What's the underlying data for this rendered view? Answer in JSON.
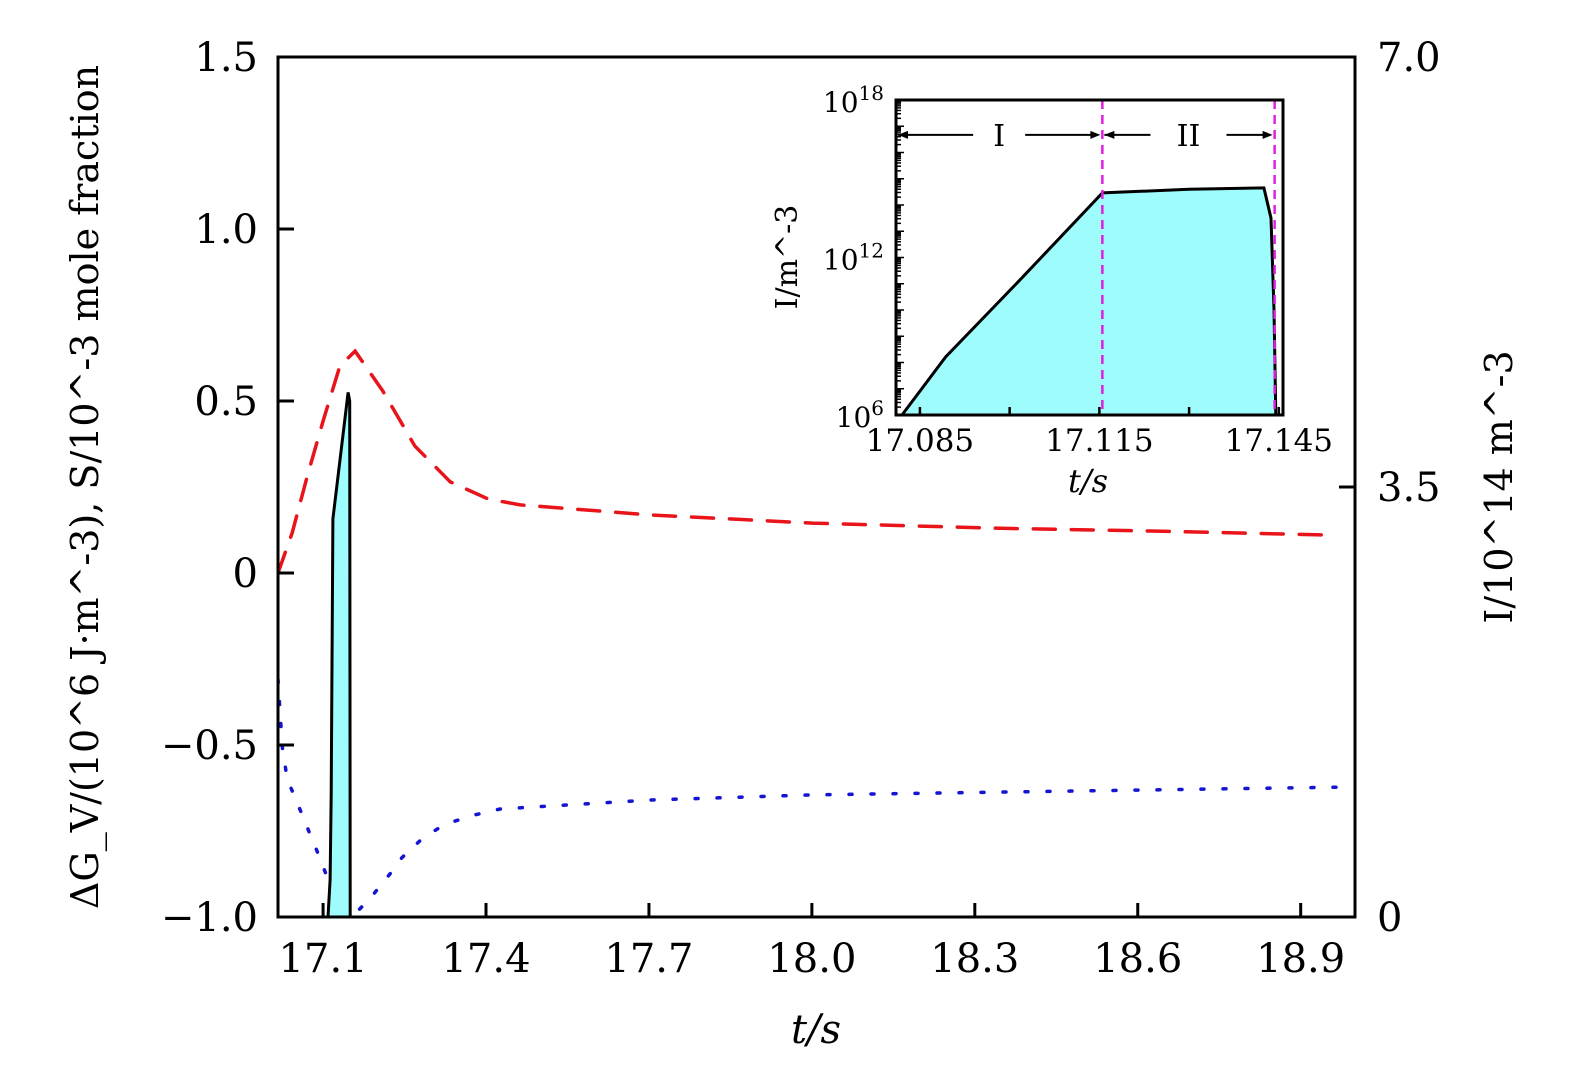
{
  "chart_data": [
    {
      "type": "line",
      "panel": "main",
      "xlabel": "t/s",
      "ylabel_left": "ΔG_V/(10^6 J·m^-3), S/10^-3 mole fraction",
      "ylabel_right": "I/10^14 m^-3",
      "xlim": [
        17.017,
        19.0
      ],
      "ylim_left": [
        -1.0,
        1.5
      ],
      "ylim_right": [
        0,
        7.0
      ],
      "x_ticks": [
        17.1,
        17.4,
        17.7,
        18.0,
        18.3,
        18.6,
        18.9
      ],
      "x_tick_labels": [
        "17.1",
        "17.4",
        "17.7",
        "18.0",
        "18.3",
        "18.6",
        "18.9"
      ],
      "y_left_ticks": [
        1.5,
        1.0,
        0.5,
        0,
        -0.5,
        -1.0
      ],
      "y_left_tick_labels": [
        "1.5",
        "1.0",
        "0.5",
        "0",
        "−0.5",
        "−1.0"
      ],
      "y_right_ticks": [
        7.0,
        3.5,
        0
      ],
      "y_right_tick_labels": [
        "7.0",
        "3.5",
        "0"
      ],
      "grid": false,
      "series": [
        {
          "axis": "left",
          "style": "dashed",
          "color": "#e8141a",
          "x": [
            17.017,
            17.043,
            17.072,
            17.1,
            17.131,
            17.159,
            17.21,
            17.269,
            17.334,
            17.404,
            17.463,
            17.702,
            18.0,
            18.347,
            18.623,
            18.964
          ],
          "y": [
            0.0,
            0.116,
            0.288,
            0.442,
            0.602,
            0.645,
            0.529,
            0.369,
            0.265,
            0.215,
            0.198,
            0.169,
            0.145,
            0.13,
            0.122,
            0.11
          ]
        },
        {
          "axis": "left",
          "style": "dotted",
          "color": "#1414d2",
          "x": [
            17.017,
            17.025,
            17.034,
            17.054,
            17.076,
            17.094,
            17.113,
            17.144,
            17.153,
            17.187,
            17.223,
            17.245,
            17.284,
            17.325,
            17.38,
            17.426,
            17.702,
            18.0,
            18.347,
            18.991
          ],
          "y": [
            -0.31,
            -0.506,
            -0.599,
            -0.674,
            -0.759,
            -0.828,
            -0.907,
            -0.977,
            -1.0,
            -0.945,
            -0.875,
            -0.828,
            -0.77,
            -0.73,
            -0.703,
            -0.686,
            -0.66,
            -0.645,
            -0.637,
            -0.622
          ]
        },
        {
          "axis": "right",
          "style": "solid-filled",
          "color": "#000000",
          "fill": "#9ffcfc",
          "x": [
            17.109,
            17.113,
            17.115,
            17.118,
            17.146,
            17.149,
            17.15
          ],
          "y": [
            0,
            0.3,
            1.0,
            3.24,
            4.27,
            4.2,
            0
          ]
        }
      ]
    },
    {
      "type": "area",
      "panel": "inset",
      "xlabel": "t/s",
      "ylabel": "I/m^-3",
      "xlim": [
        17.081,
        17.1457
      ],
      "ylim_log10": [
        6,
        18
      ],
      "yscale": "log",
      "x_ticks": [
        17.085,
        17.1,
        17.115,
        17.13,
        17.145
      ],
      "x_tick_labels": [
        "17.085",
        "",
        "17.115",
        "",
        "17.145"
      ],
      "y_tick_labels": [
        {
          "base": "10",
          "exp": "18"
        },
        {
          "base": "10",
          "exp": "12"
        },
        {
          "base": "10",
          "exp": "6"
        }
      ],
      "y_ticks_log10": [
        18,
        12,
        6
      ],
      "series": [
        {
          "style": "solid-filled",
          "color": "#000000",
          "fill": "#9ffcfc",
          "x": [
            17.082,
            17.0893,
            17.1017,
            17.1155,
            17.13,
            17.1425,
            17.1437,
            17.1442,
            17.1445
          ],
          "log10_y": [
            6,
            8.21,
            11.14,
            14.46,
            14.6,
            14.65,
            13.5,
            10,
            6
          ]
        }
      ],
      "region_boundaries": {
        "x": [
          17.1155,
          17.1443
        ],
        "color": "#e020e0"
      },
      "regions": [
        {
          "label": "I",
          "from": 17.081,
          "to": 17.1155
        },
        {
          "label": "II",
          "from": 17.1155,
          "to": 17.1443
        }
      ],
      "region_arrow_log10_y": 16.67
    }
  ]
}
